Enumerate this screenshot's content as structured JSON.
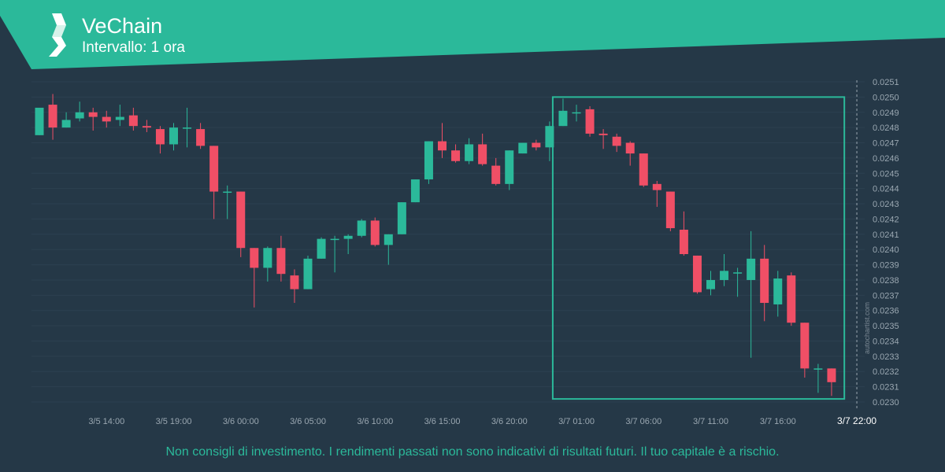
{
  "header": {
    "title": "VeChain",
    "subtitle": "Intervallo: 1 ora",
    "logo_icon": "vechain-logo-icon"
  },
  "colors": {
    "banner": "#2bb99a",
    "background": "#253847",
    "bull": "#2bb99a",
    "bear": "#f04f66",
    "axis_text": "#9aa7b1",
    "grid": "#2c4050"
  },
  "disclaimer": "Non consigli di investimento. I rendimenti passati non sono indicativi di risultati futuri. Il tuo capitale è a rischio.",
  "watermark": "autochartist.com",
  "chart_data": {
    "type": "candlestick",
    "title": "VeChain",
    "subtitle": "Intervallo: 1 ora",
    "xlabel": "",
    "ylabel": "",
    "ylim": [
      0.023,
      0.0251
    ],
    "y_ticks": [
      "0.0251",
      "0.0250",
      "0.0249",
      "0.0248",
      "0.0247",
      "0.0246",
      "0.0245",
      "0.0244",
      "0.0243",
      "0.0242",
      "0.0241",
      "0.0240",
      "0.0239",
      "0.0238",
      "0.0237",
      "0.0236",
      "0.0235",
      "0.0234",
      "0.0233",
      "0.0232",
      "0.0231",
      "0.0230"
    ],
    "x_ticks": [
      {
        "label": "3/5 14:00",
        "index": 5
      },
      {
        "label": "3/5 19:00",
        "index": 10
      },
      {
        "label": "3/6 00:00",
        "index": 15
      },
      {
        "label": "3/6 05:00",
        "index": 20
      },
      {
        "label": "3/6 10:00",
        "index": 25
      },
      {
        "label": "3/6 15:00",
        "index": 30
      },
      {
        "label": "3/6 20:00",
        "index": 35
      },
      {
        "label": "3/7 01:00",
        "index": 40
      },
      {
        "label": "3/7 06:00",
        "index": 45
      },
      {
        "label": "3/7 11:00",
        "index": 50
      },
      {
        "label": "3/7 16:00",
        "index": 55
      }
    ],
    "current_label": {
      "label": "3/7 22:00",
      "index": 61
    },
    "grid": true,
    "pattern_box": {
      "from_index": 38,
      "to_index": 59.6,
      "y_top": 0.025,
      "y_bottom": 0.02302
    },
    "candles": [
      {
        "o": 0.02475,
        "h": 0.02493,
        "l": 0.02475,
        "c": 0.02493
      },
      {
        "o": 0.02495,
        "h": 0.02502,
        "l": 0.02472,
        "c": 0.0248
      },
      {
        "o": 0.0248,
        "h": 0.0249,
        "l": 0.0248,
        "c": 0.02485
      },
      {
        "o": 0.02486,
        "h": 0.02497,
        "l": 0.02484,
        "c": 0.0249
      },
      {
        "o": 0.0249,
        "h": 0.02493,
        "l": 0.02478,
        "c": 0.02487
      },
      {
        "o": 0.02487,
        "h": 0.02491,
        "l": 0.0248,
        "c": 0.02484
      },
      {
        "o": 0.02485,
        "h": 0.02495,
        "l": 0.02481,
        "c": 0.02487
      },
      {
        "o": 0.02488,
        "h": 0.02493,
        "l": 0.02478,
        "c": 0.02481
      },
      {
        "o": 0.02481,
        "h": 0.02485,
        "l": 0.02477,
        "c": 0.0248
      },
      {
        "o": 0.02479,
        "h": 0.02481,
        "l": 0.02463,
        "c": 0.02469
      },
      {
        "o": 0.02469,
        "h": 0.02483,
        "l": 0.02465,
        "c": 0.0248
      },
      {
        "o": 0.0248,
        "h": 0.02493,
        "l": 0.02467,
        "c": 0.0248
      },
      {
        "o": 0.02479,
        "h": 0.02483,
        "l": 0.02466,
        "c": 0.02468
      },
      {
        "o": 0.02468,
        "h": 0.02468,
        "l": 0.0242,
        "c": 0.02438
      },
      {
        "o": 0.02438,
        "h": 0.02442,
        "l": 0.0242,
        "c": 0.02438
      },
      {
        "o": 0.02438,
        "h": 0.02438,
        "l": 0.02395,
        "c": 0.02401
      },
      {
        "o": 0.02401,
        "h": 0.02401,
        "l": 0.02362,
        "c": 0.02388
      },
      {
        "o": 0.02388,
        "h": 0.02402,
        "l": 0.02379,
        "c": 0.02401
      },
      {
        "o": 0.02401,
        "h": 0.02409,
        "l": 0.02379,
        "c": 0.02384
      },
      {
        "o": 0.02383,
        "h": 0.02387,
        "l": 0.02365,
        "c": 0.02374
      },
      {
        "o": 0.02374,
        "h": 0.02396,
        "l": 0.02374,
        "c": 0.02394
      },
      {
        "o": 0.02394,
        "h": 0.02408,
        "l": 0.02394,
        "c": 0.02407
      },
      {
        "o": 0.02407,
        "h": 0.02409,
        "l": 0.02385,
        "c": 0.02407
      },
      {
        "o": 0.02407,
        "h": 0.0241,
        "l": 0.02397,
        "c": 0.02409
      },
      {
        "o": 0.02409,
        "h": 0.0242,
        "l": 0.02408,
        "c": 0.02419
      },
      {
        "o": 0.02419,
        "h": 0.02421,
        "l": 0.02402,
        "c": 0.02403
      },
      {
        "o": 0.02403,
        "h": 0.0241,
        "l": 0.0239,
        "c": 0.0241
      },
      {
        "o": 0.0241,
        "h": 0.02431,
        "l": 0.0241,
        "c": 0.02431
      },
      {
        "o": 0.02431,
        "h": 0.02446,
        "l": 0.02431,
        "c": 0.02446
      },
      {
        "o": 0.02446,
        "h": 0.02471,
        "l": 0.02443,
        "c": 0.02471
      },
      {
        "o": 0.02471,
        "h": 0.02483,
        "l": 0.0246,
        "c": 0.02465
      },
      {
        "o": 0.02465,
        "h": 0.02469,
        "l": 0.02457,
        "c": 0.02458
      },
      {
        "o": 0.02458,
        "h": 0.02473,
        "l": 0.02456,
        "c": 0.02469
      },
      {
        "o": 0.02469,
        "h": 0.02476,
        "l": 0.02455,
        "c": 0.02456
      },
      {
        "o": 0.02455,
        "h": 0.0246,
        "l": 0.02442,
        "c": 0.02443
      },
      {
        "o": 0.02443,
        "h": 0.02465,
        "l": 0.02439,
        "c": 0.02465
      },
      {
        "o": 0.02463,
        "h": 0.0247,
        "l": 0.02463,
        "c": 0.0247
      },
      {
        "o": 0.0247,
        "h": 0.02472,
        "l": 0.02465,
        "c": 0.02467
      },
      {
        "o": 0.02467,
        "h": 0.02484,
        "l": 0.02458,
        "c": 0.02481
      },
      {
        "o": 0.02481,
        "h": 0.02499,
        "l": 0.02481,
        "c": 0.02491
      },
      {
        "o": 0.0249,
        "h": 0.02495,
        "l": 0.02484,
        "c": 0.0249
      },
      {
        "o": 0.02492,
        "h": 0.02494,
        "l": 0.02474,
        "c": 0.02476
      },
      {
        "o": 0.02476,
        "h": 0.02479,
        "l": 0.02466,
        "c": 0.02475
      },
      {
        "o": 0.02474,
        "h": 0.02476,
        "l": 0.02464,
        "c": 0.02468
      },
      {
        "o": 0.0247,
        "h": 0.02471,
        "l": 0.02455,
        "c": 0.02463
      },
      {
        "o": 0.02463,
        "h": 0.02463,
        "l": 0.02441,
        "c": 0.02442
      },
      {
        "o": 0.02443,
        "h": 0.02445,
        "l": 0.02428,
        "c": 0.02439
      },
      {
        "o": 0.02438,
        "h": 0.02438,
        "l": 0.02412,
        "c": 0.02414
      },
      {
        "o": 0.02413,
        "h": 0.02425,
        "l": 0.02396,
        "c": 0.02397
      },
      {
        "o": 0.02396,
        "h": 0.02396,
        "l": 0.02371,
        "c": 0.02372
      },
      {
        "o": 0.02374,
        "h": 0.02386,
        "l": 0.0237,
        "c": 0.0238
      },
      {
        "o": 0.0238,
        "h": 0.02397,
        "l": 0.02376,
        "c": 0.02386
      },
      {
        "o": 0.02385,
        "h": 0.02388,
        "l": 0.02369,
        "c": 0.02385
      },
      {
        "o": 0.0238,
        "h": 0.02412,
        "l": 0.02329,
        "c": 0.02394
      },
      {
        "o": 0.02394,
        "h": 0.02403,
        "l": 0.02353,
        "c": 0.02365
      },
      {
        "o": 0.02364,
        "h": 0.02386,
        "l": 0.02356,
        "c": 0.02381
      },
      {
        "o": 0.02383,
        "h": 0.02385,
        "l": 0.0235,
        "c": 0.02352
      },
      {
        "o": 0.02352,
        "h": 0.02352,
        "l": 0.02316,
        "c": 0.02322
      },
      {
        "o": 0.02322,
        "h": 0.02325,
        "l": 0.02306,
        "c": 0.02322
      },
      {
        "o": 0.02322,
        "h": 0.02322,
        "l": 0.02304,
        "c": 0.02313
      }
    ]
  }
}
